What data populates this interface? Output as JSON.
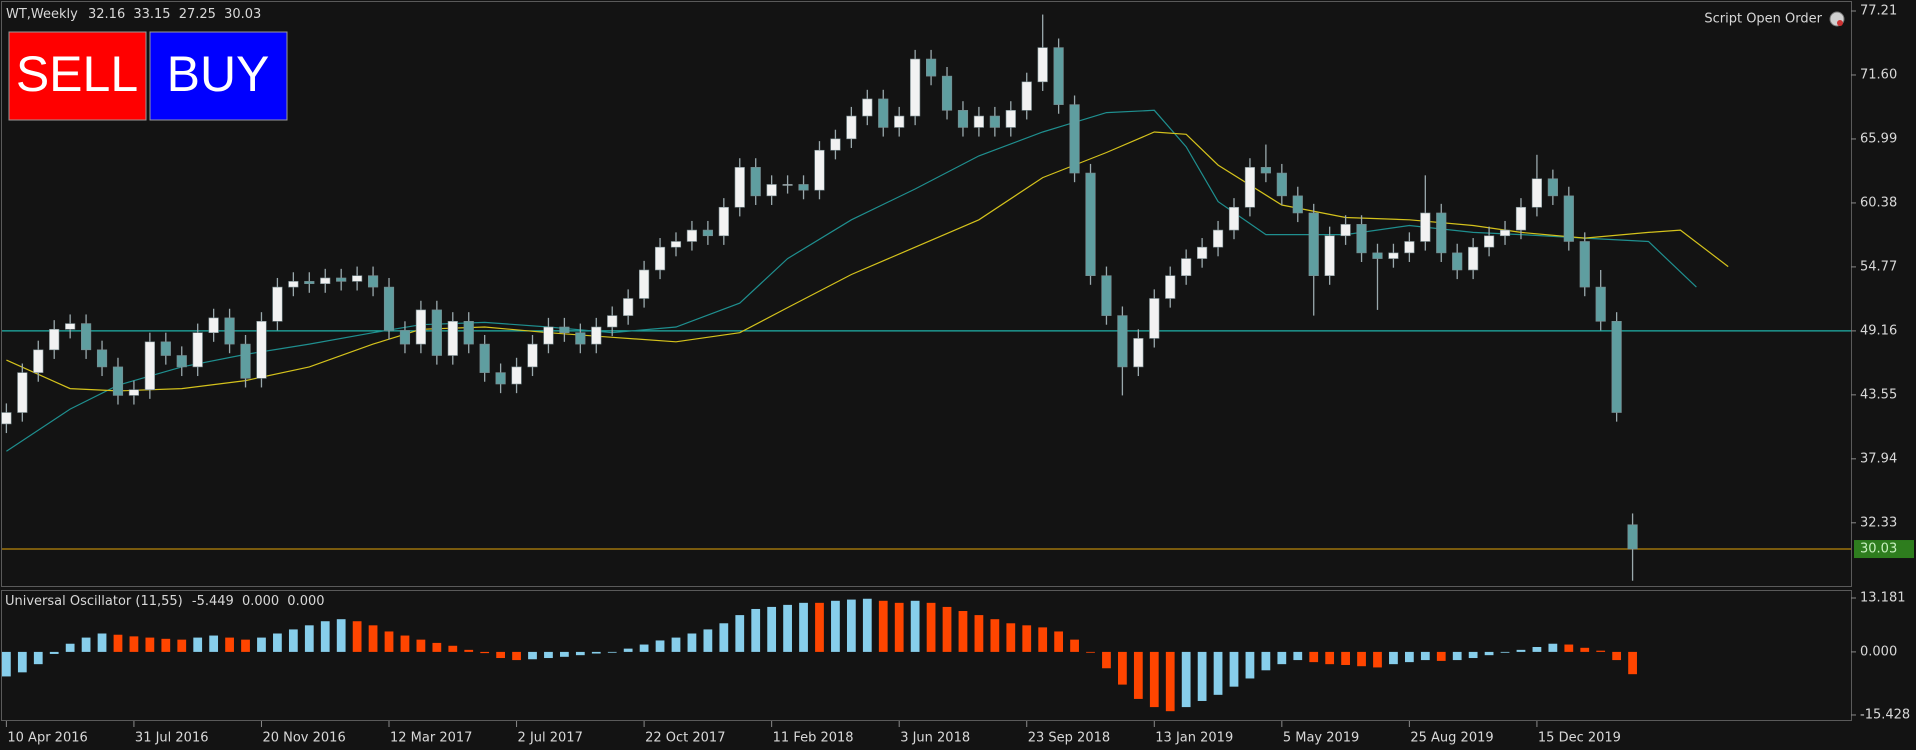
{
  "chart_data": {
    "type": "candlestick",
    "symbol": "WT,Weekly",
    "buttons": [
      "SELL",
      "BUY"
    ],
    "script_label": "Script Open Order",
    "open": [
      41.0,
      42.0,
      45.5,
      47.5,
      49.3,
      49.8,
      47.5,
      46.0,
      43.5,
      44.0,
      48.2,
      47.0,
      46.0,
      49.0,
      50.3,
      48.0,
      45.0,
      50.0,
      53.0,
      53.5,
      53.3,
      53.8,
      53.5,
      54.0,
      53.0,
      49.2,
      48.0,
      51.0,
      47.0,
      50.0,
      48.0,
      45.5,
      44.5,
      46.0,
      48.0,
      49.5,
      49.0,
      48.0,
      49.5,
      50.5,
      52.0,
      54.5,
      56.5,
      57.0,
      58.0,
      57.5,
      60.0,
      63.5,
      61.0,
      62.0,
      62.0,
      61.5,
      65.0,
      66.0,
      68.0,
      69.5,
      67.0,
      68.0,
      73.0,
      71.5,
      68.5,
      67.0,
      68.0,
      67.0,
      68.5,
      71.0,
      74.0,
      69.0,
      63.0,
      54.0,
      50.5,
      46.0,
      48.5,
      52.0,
      54.0,
      55.5,
      56.5,
      58.0,
      60.0,
      63.5,
      63.0,
      61.0,
      59.5,
      54.0,
      57.5,
      58.5,
      56.0,
      55.5,
      56.0,
      57.0,
      59.5,
      56.0,
      54.5,
      56.5,
      57.5,
      58.0,
      60.0,
      62.5,
      61.0,
      57.0,
      53.0,
      50.0,
      32.16
    ],
    "high": [
      42.8,
      46.3,
      48.3,
      50.1,
      50.6,
      50.6,
      48.3,
      46.8,
      44.8,
      49.0,
      49.0,
      47.8,
      49.8,
      51.1,
      51.1,
      48.8,
      50.8,
      53.8,
      54.3,
      54.3,
      54.6,
      54.6,
      54.8,
      54.8,
      53.8,
      50.0,
      51.8,
      51.8,
      50.8,
      50.8,
      48.8,
      46.3,
      46.8,
      48.8,
      50.3,
      50.3,
      49.8,
      50.3,
      51.3,
      52.8,
      55.3,
      57.3,
      57.8,
      58.8,
      58.8,
      60.8,
      64.3,
      64.3,
      62.8,
      62.8,
      62.8,
      65.8,
      66.8,
      68.8,
      70.3,
      70.3,
      68.8,
      73.8,
      73.8,
      72.3,
      69.3,
      68.8,
      68.8,
      69.3,
      71.8,
      76.9,
      74.8,
      69.8,
      63.8,
      54.8,
      51.3,
      49.3,
      52.8,
      54.8,
      56.3,
      57.3,
      58.8,
      60.8,
      64.3,
      65.5,
      63.8,
      61.8,
      60.3,
      58.3,
      59.3,
      59.3,
      56.8,
      56.8,
      57.8,
      62.8,
      60.3,
      56.8,
      57.3,
      58.3,
      58.8,
      60.8,
      64.6,
      63.3,
      61.8,
      57.8,
      54.5,
      50.8,
      33.15
    ],
    "low": [
      40.2,
      41.2,
      44.7,
      46.7,
      48.5,
      46.7,
      45.2,
      42.7,
      42.7,
      43.2,
      46.2,
      45.2,
      45.2,
      48.2,
      47.2,
      44.2,
      44.2,
      49.2,
      52.2,
      52.5,
      52.5,
      52.7,
      52.7,
      52.2,
      48.4,
      47.2,
      47.2,
      46.2,
      46.2,
      47.2,
      44.7,
      43.7,
      43.7,
      45.2,
      47.2,
      48.2,
      47.2,
      47.2,
      48.7,
      49.7,
      51.2,
      53.7,
      55.7,
      56.2,
      56.7,
      56.7,
      59.2,
      60.2,
      60.2,
      61.2,
      60.7,
      60.7,
      64.2,
      65.2,
      67.2,
      66.2,
      66.2,
      67.2,
      70.7,
      67.7,
      66.2,
      66.2,
      66.2,
      66.2,
      67.7,
      70.2,
      68.2,
      62.2,
      53.2,
      49.7,
      43.5,
      45.2,
      47.7,
      51.2,
      53.2,
      54.7,
      55.7,
      57.2,
      59.2,
      62.2,
      60.2,
      58.7,
      50.5,
      53.2,
      56.7,
      55.2,
      51.0,
      54.7,
      55.2,
      56.2,
      55.2,
      53.7,
      53.7,
      55.7,
      56.7,
      57.2,
      59.2,
      60.2,
      56.2,
      52.2,
      49.2,
      41.2,
      27.25
    ],
    "close": [
      42.0,
      45.5,
      47.5,
      49.3,
      49.8,
      47.5,
      46.0,
      43.5,
      44.0,
      48.2,
      47.0,
      46.0,
      49.0,
      50.3,
      48.0,
      45.0,
      50.0,
      53.0,
      53.5,
      53.3,
      53.8,
      53.5,
      54.0,
      53.0,
      49.2,
      48.0,
      51.0,
      47.0,
      50.0,
      48.0,
      45.5,
      44.5,
      46.0,
      48.0,
      49.5,
      49.0,
      48.0,
      49.5,
      50.5,
      52.0,
      54.5,
      56.5,
      57.0,
      58.0,
      57.5,
      60.0,
      63.5,
      61.0,
      62.0,
      62.0,
      61.5,
      65.0,
      66.0,
      68.0,
      69.5,
      67.0,
      68.0,
      73.0,
      71.5,
      68.5,
      67.0,
      68.0,
      67.0,
      68.5,
      71.0,
      74.0,
      69.0,
      63.0,
      54.0,
      50.5,
      46.0,
      48.5,
      52.0,
      54.0,
      55.5,
      56.5,
      58.0,
      60.0,
      63.5,
      63.0,
      61.0,
      59.5,
      54.0,
      57.5,
      58.5,
      56.0,
      55.5,
      56.0,
      57.0,
      59.5,
      56.0,
      54.5,
      56.5,
      57.5,
      58.0,
      60.0,
      62.5,
      61.0,
      57.0,
      53.0,
      50.0,
      42.0,
      30.03
    ],
    "up_color": "#f2f2f2",
    "down_color": "#5f9ea0",
    "wick_color": "#9aa9ad",
    "last_line_color": "#b8860b",
    "last_label_color": "#2e7d1e",
    "hlines": [
      {
        "value": 49.16,
        "color": "#20b2aa"
      }
    ],
    "series": [
      {
        "color": "#1f8f8f",
        "x": [
          0,
          4,
          7,
          11,
          15,
          19,
          23,
          26,
          30,
          34,
          38,
          42,
          46,
          49,
          53,
          57,
          61,
          65,
          69,
          72,
          74,
          76,
          79,
          84,
          88,
          92,
          95,
          99,
          103,
          106
        ],
        "values": [
          38.6,
          42.3,
          44.4,
          46.0,
          47.1,
          48.0,
          49.0,
          49.7,
          49.9,
          49.5,
          49.0,
          49.5,
          51.6,
          55.5,
          58.9,
          61.6,
          64.5,
          66.6,
          68.3,
          68.5,
          65.3,
          60.5,
          57.6,
          57.6,
          58.4,
          57.8,
          57.6,
          57.3,
          57.0,
          53.0
        ]
      },
      {
        "color": "#d4c21c",
        "x": [
          0,
          4,
          7,
          11,
          15,
          19,
          23,
          26,
          30,
          34,
          38,
          42,
          46,
          49,
          53,
          57,
          61,
          65,
          69,
          72,
          74,
          76,
          80,
          84,
          88,
          92,
          95,
          99,
          103,
          105,
          108
        ],
        "values": [
          46.6,
          44.1,
          43.9,
          44.1,
          44.8,
          46.0,
          48.0,
          49.3,
          49.5,
          49.0,
          48.6,
          48.2,
          49.0,
          51.2,
          54.1,
          56.5,
          58.9,
          62.6,
          64.8,
          66.6,
          66.4,
          63.7,
          60.2,
          59.1,
          58.9,
          58.4,
          57.8,
          57.3,
          57.8,
          58.0,
          54.8
        ]
      }
    ],
    "xlim": [
      -0.4,
      115.7
    ],
    "xticks": [
      {
        "value": 0,
        "label": "10 Apr 2016"
      },
      {
        "value": 8,
        "label": "31 Jul 2016"
      },
      {
        "value": 16,
        "label": "20 Nov 2016"
      },
      {
        "value": 24,
        "label": "12 Mar 2017"
      },
      {
        "value": 32,
        "label": "2 Jul 2017"
      },
      {
        "value": 40,
        "label": "22 Oct 2017"
      },
      {
        "value": 48,
        "label": "11 Feb 2018"
      },
      {
        "value": 56,
        "label": "3 Jun 2018"
      },
      {
        "value": 64,
        "label": "23 Sep 2018"
      },
      {
        "value": 72,
        "label": "13 Jan 2019"
      },
      {
        "value": 80,
        "label": "5 May 2019"
      },
      {
        "value": 88,
        "label": "25 Aug 2019"
      },
      {
        "value": 96,
        "label": "15 Dec 2019"
      }
    ],
    "ylim": [
      26.7,
      78.0
    ],
    "yticks": [
      32.33,
      37.94,
      43.55,
      49.16,
      54.77,
      60.38,
      65.99,
      {
        "value": 71.6,
        "label": "71.60"
      },
      77.21
    ],
    "oscillator": {
      "type": "bar",
      "title": "Universal Oscillator (11,55)",
      "readouts": [
        {
          "value": 0,
          "label": "0.000"
        },
        {
          "value": 0,
          "label": "0.000"
        }
      ],
      "values": [
        -6.0,
        -5.0,
        -3.0,
        -0.5,
        2.0,
        3.5,
        4.5,
        4.2,
        3.8,
        3.5,
        3.2,
        3.0,
        3.5,
        4.0,
        3.5,
        3.0,
        3.5,
        4.5,
        5.5,
        6.5,
        7.5,
        8.0,
        7.5,
        6.5,
        5.0,
        4.0,
        3.0,
        2.2,
        1.5,
        0.5,
        -0.3,
        -1.5,
        -2.0,
        -1.8,
        -1.5,
        -1.2,
        -0.8,
        -0.4,
        0.0,
        0.8,
        1.8,
        2.8,
        3.5,
        4.5,
        5.5,
        7.0,
        9.0,
        10.5,
        11.0,
        11.5,
        12.0,
        12.0,
        12.5,
        12.8,
        13.0,
        12.5,
        12.0,
        12.5,
        12.0,
        11.0,
        10.0,
        9.0,
        8.0,
        7.0,
        6.5,
        6.0,
        5.0,
        3.0,
        0.0,
        -4.0,
        -8.0,
        -11.5,
        -13.5,
        -14.5,
        -13.5,
        -12.0,
        -10.5,
        -8.5,
        -6.5,
        -4.5,
        -3.0,
        -2.0,
        -2.5,
        -3.0,
        -3.2,
        -3.5,
        -3.8,
        -3.0,
        -2.5,
        -2.0,
        -2.2,
        -2.0,
        -1.5,
        -0.8,
        -0.2,
        0.5,
        1.2,
        2.0,
        1.8,
        1.0,
        0.3,
        -2.0,
        -5.449
      ],
      "rising_color": "#87ceeb",
      "falling_color": "#ff4500",
      "ylim": [
        -16.9,
        14.65
      ],
      "yticks": [
        13.181,
        {
          "value": 0,
          "label": "0.000"
        },
        -15.428
      ]
    }
  }
}
